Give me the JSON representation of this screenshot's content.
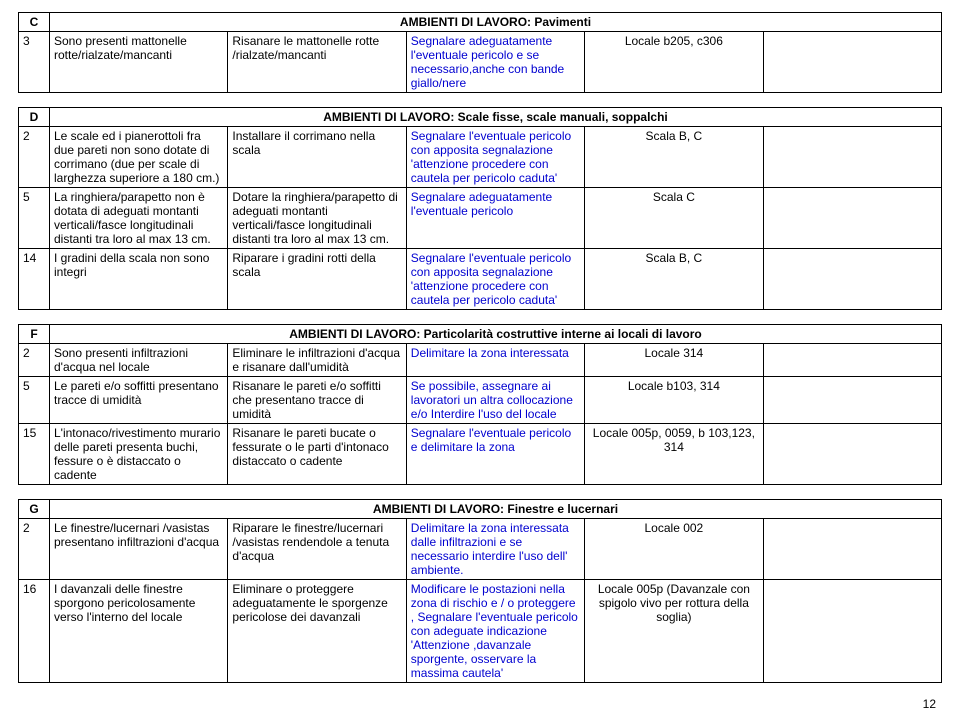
{
  "pageNumber": "12",
  "sections": [
    {
      "id": "C",
      "title": "AMBIENTI DI LAVORO: Pavimenti",
      "rows": [
        {
          "n": "3",
          "q": "Sono presenti mattonelle rotte/rialzate/mancanti",
          "a": "Risanare le mattonelle rotte /rialzate/mancanti",
          "b": "Segnalare adeguatamente l'eventuale pericolo e se necessario,anche con bande giallo/nere",
          "loc": "Locale b205, c306",
          "last": ""
        }
      ]
    },
    {
      "id": "D",
      "title": "AMBIENTI DI LAVORO: Scale fisse, scale manuali, soppalchi",
      "rows": [
        {
          "n": "2",
          "q": "Le scale ed i pianerottoli fra due pareti non sono dotate di corrimano (due per scale di larghezza superiore a 180 cm.)",
          "a": "Installare il corrimano nella scala",
          "b": "Segnalare l'eventuale pericolo con apposita segnalazione 'attenzione procedere con cautela per pericolo caduta'",
          "loc": "Scala B, C",
          "last": ""
        },
        {
          "n": "5",
          "q": "La ringhiera/parapetto non è dotata di adeguati montanti verticali/fasce longitudinali distanti tra loro al max 13 cm.",
          "a": "Dotare la ringhiera/parapetto di adeguati montanti verticali/fasce longitudinali distanti tra loro al max 13 cm.",
          "b": "Segnalare adeguatamente l'eventuale pericolo",
          "loc": "Scala C",
          "last": ""
        },
        {
          "n": "14",
          "q": "I gradini della scala non sono integri",
          "a": "Riparare i gradini rotti della scala",
          "b": "Segnalare l'eventuale pericolo con apposita segnalazione 'attenzione procedere con cautela per pericolo caduta'",
          "loc": "Scala B, C",
          "last": ""
        }
      ]
    },
    {
      "id": "F",
      "title": "AMBIENTI DI LAVORO: Particolarità costruttive interne ai locali di lavoro",
      "rows": [
        {
          "n": "2",
          "q": "Sono presenti infiltrazioni d'acqua nel locale",
          "a": "Eliminare le infiltrazioni d'acqua e risanare dall'umidità",
          "b": "Delimitare la zona interessata",
          "loc": "Locale 314",
          "last": ""
        },
        {
          "n": "5",
          "q": "Le pareti e/o soffitti presentano tracce di umidità",
          "a": "Risanare le pareti e/o soffitti che presentano tracce di umidità",
          "b": "Se possibile, assegnare ai lavoratori un altra collocazione e/o Interdire l'uso del locale",
          "loc": "Locale b103, 314",
          "last": ""
        },
        {
          "n": "15",
          "q": "L'intonaco/rivestimento murario delle pareti presenta buchi, fessure o è distaccato o cadente",
          "a": "Risanare le pareti bucate o fessurate o le parti d'intonaco distaccato o cadente",
          "b": "Segnalare l'eventuale pericolo e delimitare la zona",
          "loc": "Locale 005p, 0059, b 103,123, 314",
          "last": ""
        }
      ]
    },
    {
      "id": "G",
      "title": "AMBIENTI DI LAVORO: Finestre e lucernari",
      "rows": [
        {
          "n": "2",
          "q": "Le finestre/lucernari /vasistas presentano infiltrazioni d'acqua",
          "a": "Riparare le finestre/lucernari /vasistas rendendole a tenuta d'acqua",
          "b": "Delimitare la zona interessata dalle infiltrazioni e se necessario interdire l'uso dell' ambiente.",
          "loc": "Locale 002",
          "last": ""
        },
        {
          "n": "16",
          "q": "I davanzali delle finestre sporgono pericolosamente verso l'interno del locale",
          "a": "Eliminare o proteggere adeguatamente le sporgenze pericolose dei davanzali",
          "b": "Modificare le postazioni nella zona di rischio e / o proteggere , Segnalare l'eventuale pericolo con adeguate indicazione 'Attenzione ,davanzale sporgente, osservare la massima cautela'",
          "loc": "Locale 005p (Davanzale con spigolo vivo per rottura della soglia)",
          "last": ""
        }
      ]
    }
  ]
}
